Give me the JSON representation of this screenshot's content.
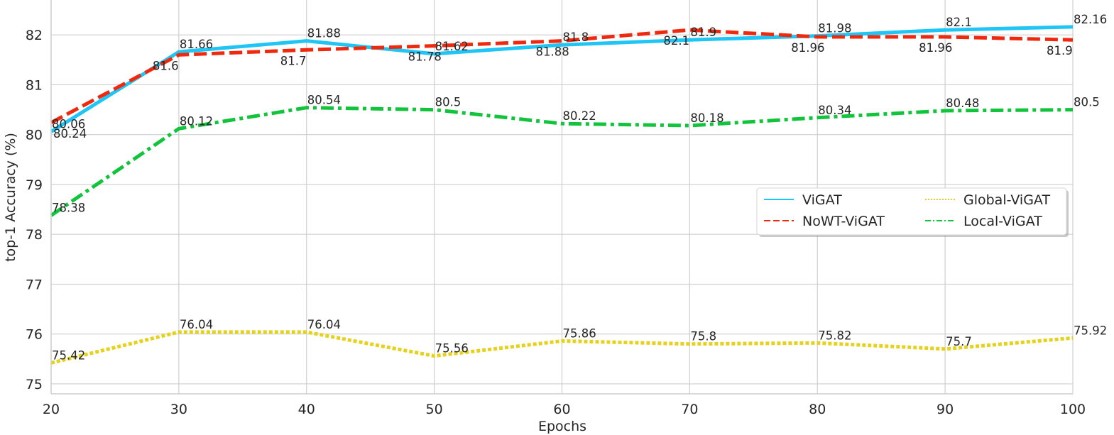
{
  "chart_data": {
    "type": "line",
    "xlabel": "Epochs",
    "ylabel": "top-1 Accuracy (%)",
    "x": [
      20,
      30,
      40,
      50,
      60,
      70,
      80,
      90,
      100
    ],
    "xlim": [
      20,
      100
    ],
    "ylim": [
      74.8,
      82.7
    ],
    "xticks": [
      20,
      30,
      40,
      50,
      60,
      70,
      80,
      90,
      100
    ],
    "yticks": [
      75,
      76,
      77,
      78,
      79,
      80,
      81,
      82
    ],
    "grid": true,
    "legend_position": "center-right",
    "series": [
      {
        "name": "ViGAT",
        "color": "#1ec5f5",
        "style": "solid",
        "values": [
          80.06,
          81.66,
          81.88,
          81.62,
          81.8,
          81.9,
          81.98,
          82.1,
          82.16
        ],
        "labels": [
          "80.06",
          "81.66",
          "81.88",
          "81.62",
          "81.8",
          "81.9",
          "81.98",
          "82.1",
          "82.16"
        ]
      },
      {
        "name": "NoWT-ViGAT",
        "color": "#f0290e",
        "style": "dashed",
        "values": [
          80.24,
          81.6,
          81.7,
          81.78,
          81.88,
          82.1,
          81.96,
          81.96,
          81.9
        ],
        "labels": [
          "80.24",
          "81.6",
          "81.7",
          "81.78",
          "81.88",
          "82.1",
          "81.96",
          "81.96",
          "81.9"
        ]
      },
      {
        "name": "Global-ViGAT",
        "color": "#e6d21a",
        "style": "dotted",
        "values": [
          75.42,
          76.04,
          76.04,
          75.56,
          75.86,
          75.8,
          75.82,
          75.7,
          75.92
        ],
        "labels": [
          "75.42",
          "76.04",
          "76.04",
          "75.56",
          "75.86",
          "75.8",
          "75.82",
          "75.7",
          "75.92"
        ]
      },
      {
        "name": "Local-ViGAT",
        "color": "#12c43c",
        "style": "dashdot",
        "values": [
          78.38,
          80.12,
          80.54,
          80.5,
          80.22,
          80.18,
          80.34,
          80.48,
          80.5
        ],
        "labels": [
          "78.38",
          "80.12",
          "80.54",
          "80.5",
          "80.22",
          "80.18",
          "80.34",
          "80.48",
          "80.5"
        ]
      }
    ]
  }
}
